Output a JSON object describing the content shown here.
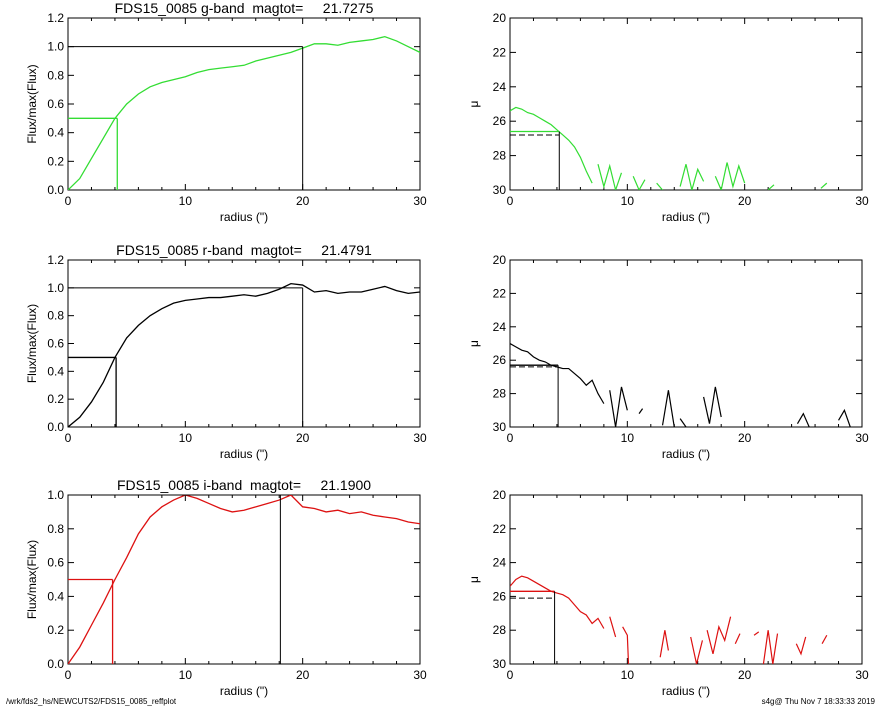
{
  "footer": {
    "path": "/wrk/fds2_hs/NEWCUTS2/FDS15_0085_reffplot",
    "stamp": "s4g@  Thu Nov  7 18:33:33 2019"
  },
  "chart_data": [
    {
      "type": "line",
      "panel": "g-flux",
      "title": "FDS15_0085 g-band  magtot=     21.7275",
      "xlabel": "radius (\")",
      "ylabel": "Flux/max(Flux)",
      "xlim": [
        0,
        30
      ],
      "ylim": [
        0,
        1.2
      ],
      "xticks": [
        0,
        10,
        20,
        30
      ],
      "yticks": [
        0.0,
        0.2,
        0.4,
        0.6,
        0.8,
        1.0,
        1.2
      ],
      "color": "#33dd33",
      "x": [
        0,
        1,
        2,
        3,
        4,
        5,
        6,
        7,
        8,
        9,
        10,
        11,
        12,
        13,
        14,
        15,
        16,
        17,
        18,
        19,
        20,
        21,
        22,
        23,
        24,
        25,
        26,
        27,
        28,
        29,
        30
      ],
      "y": [
        0.0,
        0.08,
        0.22,
        0.36,
        0.5,
        0.6,
        0.67,
        0.72,
        0.75,
        0.77,
        0.79,
        0.82,
        0.84,
        0.85,
        0.86,
        0.87,
        0.9,
        0.92,
        0.94,
        0.96,
        0.99,
        1.02,
        1.02,
        1.01,
        1.03,
        1.04,
        1.05,
        1.07,
        1.04,
        1.0,
        0.96
      ],
      "half_light": {
        "x": 4.2,
        "y": 0.5
      },
      "total": {
        "x": 20,
        "y": 1.0
      }
    },
    {
      "type": "line",
      "panel": "g-mu",
      "title": "",
      "xlabel": "radius (\")",
      "ylabel": "μ",
      "xlim": [
        0,
        30
      ],
      "ylim": [
        30,
        20
      ],
      "xticks": [
        0,
        10,
        20,
        30
      ],
      "yticks": [
        20,
        22,
        24,
        26,
        28,
        30
      ],
      "color": "#33dd33",
      "segments": [
        {
          "x": [
            0,
            0.5,
            1,
            1.5,
            2,
            2.5,
            3,
            3.5,
            4,
            4.5,
            5,
            5.5,
            6,
            6.5,
            7
          ],
          "y": [
            25.4,
            25.2,
            25.3,
            25.5,
            25.6,
            25.8,
            26.0,
            26.2,
            26.5,
            26.8,
            27.1,
            27.5,
            28.1,
            28.9,
            29.6
          ]
        },
        {
          "x": [
            7.5,
            8,
            8.5,
            9,
            9.5
          ],
          "y": [
            28.5,
            29.8,
            28.6,
            30.0,
            29.0
          ]
        },
        {
          "x": [
            10.5,
            11,
            11.5
          ],
          "y": [
            29.2,
            30.0,
            29.4
          ]
        },
        {
          "x": [
            12.5,
            13
          ],
          "y": [
            29.6,
            30.0
          ]
        },
        {
          "x": [
            14.5,
            15,
            15.5,
            16,
            16.5
          ],
          "y": [
            29.8,
            28.5,
            30.0,
            28.8,
            29.5
          ]
        },
        {
          "x": [
            17.5,
            18,
            18.5,
            19,
            19.5,
            20
          ],
          "y": [
            29.2,
            30.0,
            28.4,
            29.8,
            28.6,
            29.6
          ]
        },
        {
          "x": [
            22,
            22.5
          ],
          "y": [
            30.0,
            29.7
          ]
        },
        {
          "x": [
            26.5,
            27
          ],
          "y": [
            29.9,
            29.6
          ]
        }
      ],
      "re_marker": {
        "x": 4.2,
        "mu": 26.6
      },
      "dashed_level": 26.8
    },
    {
      "type": "line",
      "panel": "r-flux",
      "title": "FDS15_0085 r-band  magtot=     21.4791",
      "xlabel": "radius (\")",
      "ylabel": "Flux/max(Flux)",
      "xlim": [
        0,
        30
      ],
      "ylim": [
        0,
        1.2
      ],
      "xticks": [
        0,
        10,
        20,
        30
      ],
      "yticks": [
        0.0,
        0.2,
        0.4,
        0.6,
        0.8,
        1.0,
        1.2
      ],
      "color": "#000000",
      "x": [
        0,
        1,
        2,
        3,
        4,
        5,
        6,
        7,
        8,
        9,
        10,
        11,
        12,
        13,
        14,
        15,
        16,
        17,
        18,
        19,
        20,
        21,
        22,
        23,
        24,
        25,
        26,
        27,
        28,
        29,
        30
      ],
      "y": [
        0.0,
        0.07,
        0.18,
        0.32,
        0.5,
        0.64,
        0.73,
        0.8,
        0.85,
        0.89,
        0.91,
        0.92,
        0.93,
        0.93,
        0.94,
        0.95,
        0.94,
        0.96,
        0.99,
        1.03,
        1.02,
        0.97,
        0.98,
        0.96,
        0.97,
        0.97,
        0.99,
        1.01,
        0.98,
        0.96,
        0.97
      ],
      "half_light": {
        "x": 4.1,
        "y": 0.5
      },
      "total": {
        "x": 20,
        "y": 1.0
      }
    },
    {
      "type": "line",
      "panel": "r-mu",
      "title": "",
      "xlabel": "radius (\")",
      "ylabel": "μ",
      "xlim": [
        0,
        30
      ],
      "ylim": [
        30,
        20
      ],
      "xticks": [
        0,
        10,
        20,
        30
      ],
      "yticks": [
        20,
        22,
        24,
        26,
        28,
        30
      ],
      "color": "#000000",
      "segments": [
        {
          "x": [
            0,
            0.5,
            1,
            1.5,
            2,
            2.5,
            3,
            3.5,
            4,
            4.5,
            5,
            5.5,
            6,
            6.5,
            7,
            7.5,
            8
          ],
          "y": [
            25.0,
            25.2,
            25.4,
            25.5,
            25.8,
            26.0,
            26.1,
            26.3,
            26.4,
            26.5,
            26.5,
            26.8,
            27.1,
            27.5,
            27.2,
            28.0,
            28.6
          ]
        },
        {
          "x": [
            8.5,
            9,
            9.5,
            10
          ],
          "y": [
            27.8,
            30.0,
            27.6,
            29.0
          ]
        },
        {
          "x": [
            11,
            11.3
          ],
          "y": [
            29.2,
            28.9
          ]
        },
        {
          "x": [
            13,
            13.5,
            14
          ],
          "y": [
            29.9,
            27.8,
            30.0
          ]
        },
        {
          "x": [
            14.5,
            15
          ],
          "y": [
            29.5,
            30.0
          ]
        },
        {
          "x": [
            16.5,
            17,
            17.5,
            18
          ],
          "y": [
            28.2,
            29.8,
            27.6,
            29.4
          ]
        },
        {
          "x": [
            24.5,
            25,
            25.5
          ],
          "y": [
            29.8,
            29.2,
            30.0
          ]
        },
        {
          "x": [
            28,
            28.5,
            29
          ],
          "y": [
            29.6,
            29.0,
            30.0
          ]
        }
      ],
      "re_marker": {
        "x": 4.1,
        "mu": 26.3
      },
      "dashed_level": 26.4
    },
    {
      "type": "line",
      "panel": "i-flux",
      "title": "FDS15_0085 i-band  magtot=     21.1900",
      "xlabel": "radius (\")",
      "ylabel": "Flux/max(Flux)",
      "xlim": [
        0,
        30
      ],
      "ylim": [
        0,
        1.0
      ],
      "xticks": [
        0,
        10,
        20,
        30
      ],
      "yticks": [
        0.0,
        0.2,
        0.4,
        0.6,
        0.8,
        1.0
      ],
      "color": "#dd1111",
      "x": [
        0,
        1,
        2,
        3,
        4,
        5,
        6,
        7,
        8,
        9,
        10,
        11,
        12,
        13,
        14,
        15,
        16,
        17,
        18,
        19,
        20,
        21,
        22,
        23,
        24,
        25,
        26,
        27,
        28,
        29,
        30
      ],
      "y": [
        0.0,
        0.1,
        0.23,
        0.36,
        0.5,
        0.63,
        0.77,
        0.87,
        0.93,
        0.97,
        1.0,
        0.98,
        0.95,
        0.92,
        0.9,
        0.91,
        0.93,
        0.95,
        0.97,
        1.0,
        0.93,
        0.92,
        0.9,
        0.91,
        0.89,
        0.9,
        0.88,
        0.87,
        0.86,
        0.84,
        0.83
      ],
      "half_light": {
        "x": 3.8,
        "y": 0.5
      },
      "total": {
        "x": 18.1,
        "y": 1.0
      }
    },
    {
      "type": "line",
      "panel": "i-mu",
      "title": "",
      "xlabel": "radius (\")",
      "ylabel": "μ",
      "xlim": [
        0,
        30
      ],
      "ylim": [
        30,
        20
      ],
      "xticks": [
        0,
        10,
        20,
        30
      ],
      "yticks": [
        20,
        22,
        24,
        26,
        28,
        30
      ],
      "color": "#dd1111",
      "segments": [
        {
          "x": [
            0,
            0.5,
            1,
            1.5,
            2,
            2.5,
            3,
            3.5,
            4,
            4.5,
            5,
            5.5,
            6,
            6.5,
            7,
            7.5,
            8
          ],
          "y": [
            25.4,
            25.0,
            24.8,
            24.9,
            25.1,
            25.3,
            25.5,
            25.7,
            25.8,
            25.9,
            26.1,
            26.5,
            26.9,
            27.1,
            27.6,
            27.3,
            27.9
          ]
        },
        {
          "x": [
            8.5,
            9
          ],
          "y": [
            27.2,
            28.4
          ]
        },
        {
          "x": [
            9.6,
            10,
            10.1
          ],
          "y": [
            27.8,
            28.3,
            30.0
          ]
        },
        {
          "x": [
            12.8,
            13.2,
            13.5
          ],
          "y": [
            29.6,
            28.0,
            29.2
          ]
        },
        {
          "x": [
            15.4,
            15.9,
            16.4
          ],
          "y": [
            28.4,
            30.0,
            28.6
          ]
        },
        {
          "x": [
            16.8,
            17.3,
            17.8,
            18.3,
            18.8
          ],
          "y": [
            28.0,
            29.4,
            27.8,
            28.6,
            27.2
          ]
        },
        {
          "x": [
            19.2,
            19.6
          ],
          "y": [
            28.8,
            28.2
          ]
        },
        {
          "x": [
            20.8,
            21.2
          ],
          "y": [
            28.3,
            28.1
          ]
        },
        {
          "x": [
            21.6,
            22,
            22.4,
            22.8
          ],
          "y": [
            30.0,
            28.0,
            30.0,
            28.2
          ]
        },
        {
          "x": [
            24.4,
            24.8,
            25.2
          ],
          "y": [
            28.8,
            29.4,
            28.4
          ]
        },
        {
          "x": [
            26.6,
            27
          ],
          "y": [
            28.8,
            28.3
          ]
        }
      ],
      "re_marker": {
        "x": 3.8,
        "mu": 25.7
      },
      "dashed_level": 26.1
    }
  ]
}
